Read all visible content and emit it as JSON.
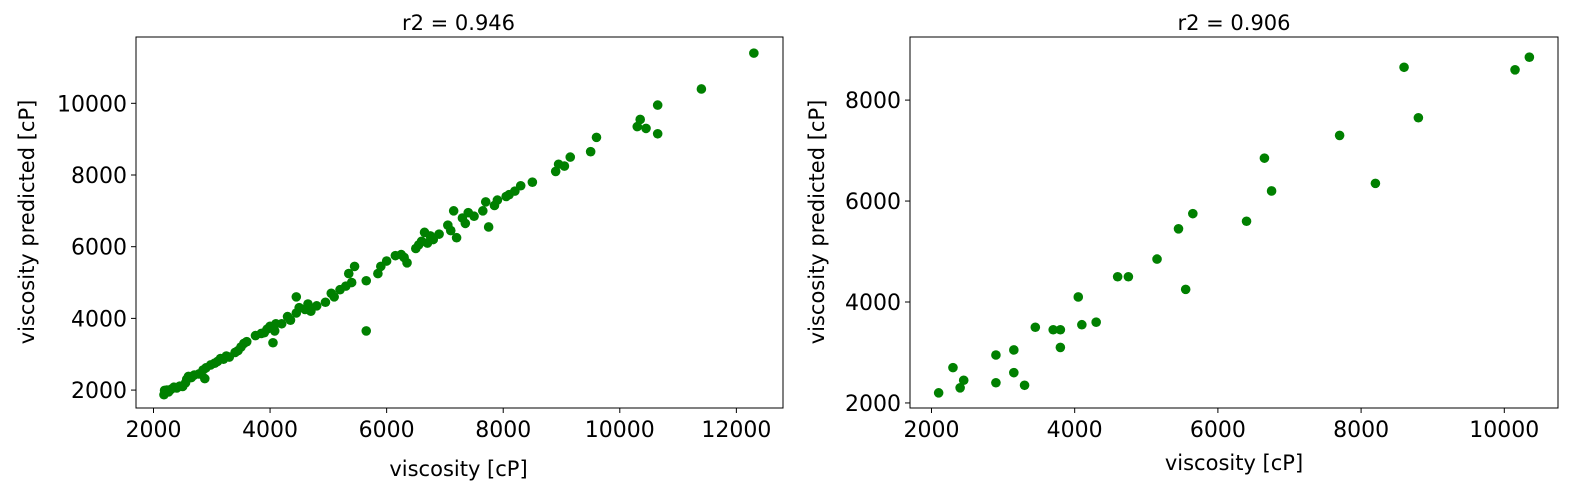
{
  "marker_color": "#008000",
  "chart_data": [
    {
      "type": "scatter",
      "title": "r2 = 0.946",
      "xlabel": "viscosity [cP]",
      "ylabel": "viscosity predicted [cP]",
      "xlim": [
        1700,
        12800
      ],
      "ylim": [
        1500,
        11850
      ],
      "xticks": [
        2000,
        4000,
        6000,
        8000,
        10000,
        12000
      ],
      "xtick_labels": [
        "2000",
        "4000",
        "6000",
        "8000",
        "10000",
        "12000"
      ],
      "yticks": [
        2000,
        4000,
        6000,
        8000,
        10000
      ],
      "ytick_labels": [
        "2000",
        "4000",
        "6000",
        "8000",
        "10000"
      ],
      "grid": false,
      "points": [
        [
          2180,
          1870
        ],
        [
          2190,
          1990
        ],
        [
          2230,
          2000
        ],
        [
          2260,
          1950
        ],
        [
          2300,
          2020
        ],
        [
          2350,
          2080
        ],
        [
          2400,
          2060
        ],
        [
          2450,
          2110
        ],
        [
          2500,
          2100
        ],
        [
          2550,
          2200
        ],
        [
          2570,
          2300
        ],
        [
          2600,
          2380
        ],
        [
          2650,
          2350
        ],
        [
          2700,
          2420
        ],
        [
          2780,
          2450
        ],
        [
          2850,
          2560
        ],
        [
          2880,
          2320
        ],
        [
          2900,
          2620
        ],
        [
          2980,
          2700
        ],
        [
          3050,
          2750
        ],
        [
          3100,
          2800
        ],
        [
          3150,
          2880
        ],
        [
          3200,
          2860
        ],
        [
          3250,
          2950
        ],
        [
          3300,
          2920
        ],
        [
          3400,
          3050
        ],
        [
          3450,
          3100
        ],
        [
          3500,
          3200
        ],
        [
          3550,
          3300
        ],
        [
          3600,
          3350
        ],
        [
          3750,
          3520
        ],
        [
          3850,
          3580
        ],
        [
          3900,
          3600
        ],
        [
          3950,
          3700
        ],
        [
          4000,
          3780
        ],
        [
          4050,
          3320
        ],
        [
          4080,
          3650
        ],
        [
          4100,
          3850
        ],
        [
          4200,
          3850
        ],
        [
          4300,
          4050
        ],
        [
          4350,
          3950
        ],
        [
          4450,
          4150
        ],
        [
          4450,
          4600
        ],
        [
          4500,
          4300
        ],
        [
          4600,
          4250
        ],
        [
          4650,
          4400
        ],
        [
          4700,
          4200
        ],
        [
          4800,
          4350
        ],
        [
          4950,
          4450
        ],
        [
          5050,
          4700
        ],
        [
          5100,
          4600
        ],
        [
          5200,
          4800
        ],
        [
          5300,
          4900
        ],
        [
          5350,
          5250
        ],
        [
          5400,
          5000
        ],
        [
          5450,
          5450
        ],
        [
          5650,
          5050
        ],
        [
          5650,
          3650
        ],
        [
          5850,
          5250
        ],
        [
          5900,
          5450
        ],
        [
          6000,
          5600
        ],
        [
          6150,
          5750
        ],
        [
          6250,
          5780
        ],
        [
          6300,
          5700
        ],
        [
          6350,
          5550
        ],
        [
          6500,
          5950
        ],
        [
          6550,
          6050
        ],
        [
          6600,
          6150
        ],
        [
          6650,
          6400
        ],
        [
          6700,
          6100
        ],
        [
          6750,
          6300
        ],
        [
          6800,
          6200
        ],
        [
          6900,
          6350
        ],
        [
          7050,
          6600
        ],
        [
          7100,
          6450
        ],
        [
          7150,
          7000
        ],
        [
          7200,
          6250
        ],
        [
          7300,
          6800
        ],
        [
          7350,
          6650
        ],
        [
          7400,
          6950
        ],
        [
          7500,
          6850
        ],
        [
          7650,
          7000
        ],
        [
          7700,
          7250
        ],
        [
          7750,
          6550
        ],
        [
          7850,
          7150
        ],
        [
          7900,
          7300
        ],
        [
          8050,
          7400
        ],
        [
          8100,
          7450
        ],
        [
          8200,
          7550
        ],
        [
          8300,
          7700
        ],
        [
          8500,
          7800
        ],
        [
          8900,
          8100
        ],
        [
          8950,
          8300
        ],
        [
          9050,
          8250
        ],
        [
          9150,
          8500
        ],
        [
          9500,
          8650
        ],
        [
          9600,
          9050
        ],
        [
          10300,
          9350
        ],
        [
          10350,
          9550
        ],
        [
          10450,
          9300
        ],
        [
          10650,
          9950
        ],
        [
          10650,
          9150
        ],
        [
          11400,
          10400
        ],
        [
          12300,
          11400
        ]
      ]
    },
    {
      "type": "scatter",
      "title": "r2 = 0.906",
      "xlabel": "viscosity [cP]",
      "ylabel": "viscosity predicted [cP]",
      "xlim": [
        1700,
        10750
      ],
      "ylim": [
        1900,
        9250
      ],
      "xticks": [
        2000,
        4000,
        6000,
        8000,
        10000
      ],
      "xtick_labels": [
        "2000",
        "4000",
        "6000",
        "8000",
        "10000"
      ],
      "yticks": [
        2000,
        4000,
        6000,
        8000
      ],
      "ytick_labels": [
        "2000",
        "4000",
        "6000",
        "8000"
      ],
      "grid": false,
      "points": [
        [
          2100,
          2200
        ],
        [
          2300,
          2700
        ],
        [
          2400,
          2300
        ],
        [
          2450,
          2450
        ],
        [
          2900,
          2400
        ],
        [
          2900,
          2950
        ],
        [
          3150,
          2600
        ],
        [
          3150,
          3050
        ],
        [
          3300,
          2350
        ],
        [
          3450,
          3500
        ],
        [
          3700,
          3450
        ],
        [
          3800,
          3450
        ],
        [
          3800,
          3100
        ],
        [
          4050,
          4100
        ],
        [
          4100,
          3550
        ],
        [
          4300,
          3600
        ],
        [
          4600,
          4500
        ],
        [
          4750,
          4500
        ],
        [
          5150,
          4850
        ],
        [
          5450,
          5450
        ],
        [
          5550,
          4250
        ],
        [
          5650,
          5750
        ],
        [
          6400,
          5600
        ],
        [
          6650,
          6850
        ],
        [
          6750,
          6200
        ],
        [
          7700,
          7300
        ],
        [
          8200,
          6350
        ],
        [
          8600,
          8650
        ],
        [
          8800,
          7650
        ],
        [
          10150,
          8600
        ],
        [
          10350,
          8850
        ]
      ]
    }
  ]
}
